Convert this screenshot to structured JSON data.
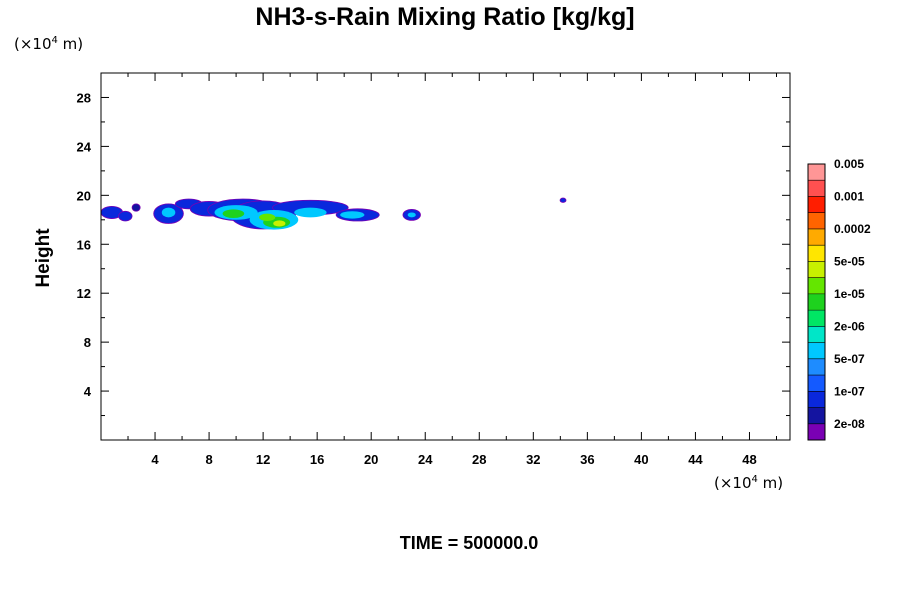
{
  "chart_data": {
    "type": "heatmap",
    "title": "NH3-s-Rain Mixing Ratio [kg/kg]",
    "ylabel": "Height",
    "xunit": {
      "prefix": "(×10",
      "exp": "4",
      "suffix": " m)"
    },
    "yunit": {
      "prefix": "(×10",
      "exp": "4",
      "suffix": " m)"
    },
    "xlim": [
      0,
      51
    ],
    "ylim": [
      0,
      30
    ],
    "x_ticks": [
      4,
      8,
      12,
      16,
      20,
      24,
      28,
      32,
      36,
      40,
      44,
      48
    ],
    "x_tick_labels": [
      "4",
      "8",
      "12",
      "16",
      "20",
      "24",
      "28",
      "32",
      "36",
      "40",
      "44",
      "48"
    ],
    "y_ticks": [
      4,
      8,
      12,
      16,
      20,
      24,
      28
    ],
    "y_tick_labels": [
      "4",
      "8",
      "12",
      "16",
      "20",
      "24",
      "28"
    ],
    "footer": "TIME = 500000.0",
    "colorbar": {
      "colors": [
        "#7a00b4",
        "#1414a0",
        "#0a28dc",
        "#145aff",
        "#1e8cff",
        "#00c8ff",
        "#00e6c8",
        "#00e664",
        "#1ed21e",
        "#64e600",
        "#c8f000",
        "#ffe600",
        "#ffaa00",
        "#ff6400",
        "#ff1e00",
        "#ff5050",
        "#ff9696"
      ],
      "labels": [
        "2e-08",
        "1e-07",
        "5e-07",
        "2e-06",
        "1e-05",
        "5e-05",
        "0.0002",
        "0.001",
        "0.005"
      ]
    },
    "regions": [
      {
        "cx": 0.8,
        "cy": 18.6,
        "rx": 0.8,
        "ry": 0.5,
        "level": 2
      },
      {
        "cx": 1.8,
        "cy": 18.3,
        "rx": 0.5,
        "ry": 0.4,
        "level": 2
      },
      {
        "cx": 2.6,
        "cy": 19.0,
        "rx": 0.3,
        "ry": 0.3,
        "level": 1
      },
      {
        "cx": 5.0,
        "cy": 18.5,
        "rx": 1.1,
        "ry": 0.8,
        "level": 2
      },
      {
        "cx": 5.0,
        "cy": 18.6,
        "rx": 0.5,
        "ry": 0.4,
        "level": 5
      },
      {
        "cx": 6.5,
        "cy": 19.3,
        "rx": 1.0,
        "ry": 0.4,
        "level": 2
      },
      {
        "cx": 8.0,
        "cy": 18.9,
        "rx": 1.4,
        "ry": 0.6,
        "level": 2
      },
      {
        "cx": 10.5,
        "cy": 18.8,
        "rx": 2.6,
        "ry": 0.9,
        "level": 2
      },
      {
        "cx": 12.0,
        "cy": 18.4,
        "rx": 2.4,
        "ry": 1.15,
        "level": 2
      },
      {
        "cx": 15.5,
        "cy": 19.0,
        "rx": 2.8,
        "ry": 0.6,
        "level": 2
      },
      {
        "cx": 19.0,
        "cy": 18.4,
        "rx": 1.6,
        "ry": 0.5,
        "level": 2
      },
      {
        "cx": 23.0,
        "cy": 18.4,
        "rx": 0.65,
        "ry": 0.45,
        "level": 2
      },
      {
        "cx": 34.2,
        "cy": 19.6,
        "rx": 0.22,
        "ry": 0.18,
        "level": 2
      },
      {
        "cx": 10.0,
        "cy": 18.6,
        "rx": 1.6,
        "ry": 0.6,
        "level": 5
      },
      {
        "cx": 12.8,
        "cy": 18.0,
        "rx": 1.8,
        "ry": 0.8,
        "level": 5
      },
      {
        "cx": 15.5,
        "cy": 18.6,
        "rx": 1.2,
        "ry": 0.4,
        "level": 5
      },
      {
        "cx": 18.6,
        "cy": 18.4,
        "rx": 0.9,
        "ry": 0.3,
        "level": 5
      },
      {
        "cx": 23.0,
        "cy": 18.4,
        "rx": 0.3,
        "ry": 0.2,
        "level": 5
      },
      {
        "cx": 9.8,
        "cy": 18.5,
        "rx": 0.8,
        "ry": 0.35,
        "level": 8
      },
      {
        "cx": 13.0,
        "cy": 17.8,
        "rx": 1.0,
        "ry": 0.45,
        "level": 8
      },
      {
        "cx": 12.3,
        "cy": 18.2,
        "rx": 0.6,
        "ry": 0.3,
        "level": 9
      },
      {
        "cx": 13.2,
        "cy": 17.7,
        "rx": 0.45,
        "ry": 0.25,
        "level": 10
      }
    ]
  }
}
